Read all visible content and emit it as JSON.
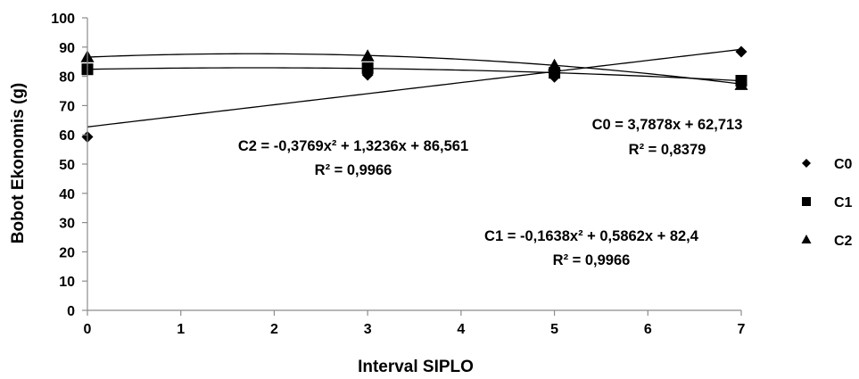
{
  "chart_data": {
    "type": "scatter",
    "xlabel": "Interval SIPLO",
    "ylabel": "Bobot Ekonomis (g)",
    "xlim": [
      0,
      7
    ],
    "ylim": [
      0,
      100
    ],
    "xticks": [
      "0",
      "1",
      "2",
      "3",
      "4",
      "5",
      "6",
      "7"
    ],
    "yticks": [
      "0",
      "10",
      "20",
      "30",
      "40",
      "50",
      "60",
      "70",
      "80",
      "90",
      "100"
    ],
    "grid": false,
    "legend_position": "right",
    "series": [
      {
        "name": "C0",
        "marker": "diamond",
        "x": [
          0,
          3,
          5,
          7
        ],
        "y": [
          59.3,
          80.5,
          79.8,
          88.4
        ],
        "trendline": {
          "kind": "linear",
          "coef": [
            3.7878,
            62.713
          ]
        }
      },
      {
        "name": "C1",
        "marker": "square",
        "x": [
          0,
          3,
          5,
          7
        ],
        "y": [
          82.4,
          82.8,
          81.2,
          78.5
        ],
        "trendline": {
          "kind": "poly2",
          "coef": [
            -0.1638,
            0.5862,
            82.4
          ]
        }
      },
      {
        "name": "C2",
        "marker": "triangle",
        "x": [
          0,
          3,
          5,
          7
        ],
        "y": [
          86.5,
          86.8,
          83.6,
          77.0
        ],
        "trendline": {
          "kind": "poly2",
          "coef": [
            -0.3769,
            1.3236,
            86.561
          ]
        }
      }
    ],
    "annotations": {
      "c2_eq": "C2 = -0,3769x² + 1,3236x + 86,561",
      "c2_r2": "R² = 0,9966",
      "c0_eq": "C0 = 3,7878x + 62,713",
      "c0_r2": "R² = 0,8379",
      "c1_eq": "C1 = -0,1638x² + 0,5862x + 82,4",
      "c1_r2": "R² = 0,9966"
    }
  }
}
